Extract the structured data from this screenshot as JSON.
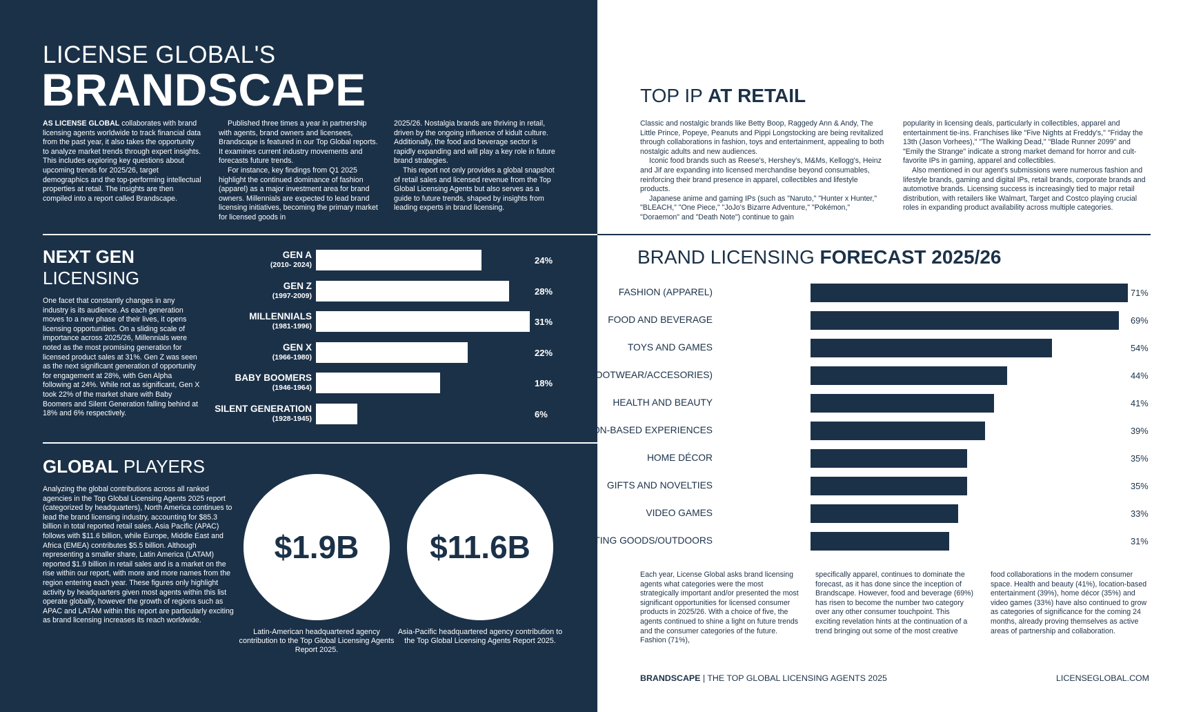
{
  "header": {
    "kicker": "LICENSE GLOBAL'S",
    "title": "BRANDSCAPE"
  },
  "intro": {
    "lead_bold": "AS LICENSE GLOBAL",
    "col1_rest": " collaborates with brand licensing agents worldwide to track financial data from the past year, it also takes the opportunity to analyze market trends through expert insights. This includes exploring key questions about upcoming trends for 2025/26, target demographics and the top-performing intellectual properties at retail. The insights are then compiled into a report called Brandscape.",
    "col2_p1": "Published three times a year in partnership with agents, brand owners and licensees, Brandscape is featured in our Top Global reports. It examines current industry movements and forecasts future trends.",
    "col2_p2": "For instance, key findings from Q1 2025 highlight the continued dominance of fashion (apparel) as a major investment area for brand owners. Millennials are expected to lead brand licensing initiatives, becoming the primary market for licensed goods in",
    "col3_p1": "2025/26. Nostalgia brands are thriving in retail, driven by the ongoing influence of kidult culture. Additionally, the food and beverage sector is rapidly expanding and will play a key role in future brand strategies.",
    "col3_p2": "This report not only provides a global snapshot of retail sales and licensed revenue from the Top Global Licensing Agents but also serves as a guide to future trends, shaped by insights from leading experts in brand licensing."
  },
  "next_gen": {
    "title_bold": "NEXT GEN",
    "title_light": "LICENSING",
    "body": "One facet that constantly changes in any industry is its audience. As each generation moves to a new phase of their lives, it opens licensing opportunities. On a sliding scale of importance across 2025/26, Millennials were noted as the most promising generation for licensed product sales at 31%. Gen Z was seen as the next significant generation of opportunity for engagement at 28%, with Gen Alpha following at 24%. While not as significant, Gen X took 22% of the market share with Baby Boomers and Silent Generation falling behind at 18% and 6% respectively."
  },
  "chart_data": [
    {
      "type": "bar",
      "title": "NEXT GEN LICENSING",
      "orientation": "horizontal",
      "categories": [
        "GEN A",
        "GEN Z",
        "MILLENNIALS",
        "GEN X",
        "BABY BOOMERS",
        "SILENT GENERATION"
      ],
      "subcategories": [
        "(2010- 2024)",
        "(1997-2009)",
        "(1981-1996)",
        "(1966-1980)",
        "(1946-1964)",
        "(1928-1945)"
      ],
      "values": [
        24,
        28,
        31,
        22,
        18,
        6
      ],
      "value_labels": [
        "24%",
        "28%",
        "31%",
        "22%",
        "18%",
        "6%"
      ],
      "unit": "%",
      "xlim": [
        0,
        31
      ]
    },
    {
      "type": "bar",
      "title": "BRAND LICENSING FORECAST 2025/26",
      "orientation": "horizontal",
      "categories": [
        "FASHION (APPAREL)",
        "FOOD AND BEVERAGE",
        "TOYS AND GAMES",
        "FASHION (FOOTWEAR/ACCESORIES)",
        "HEALTH AND BEAUTY",
        "LOCATION-BASED EXPERIENCES",
        "HOME DÉCOR",
        "GIFTS AND NOVELTIES",
        "VIDEO GAMES",
        "SPORTING GOODS/OUTDOORS"
      ],
      "values": [
        71,
        69,
        54,
        44,
        41,
        39,
        35,
        35,
        33,
        31
      ],
      "value_labels": [
        "71%",
        "69%",
        "54%",
        "44%",
        "41%",
        "39%",
        "35%",
        "35%",
        "33%",
        "31%"
      ],
      "unit": "%",
      "xlim": [
        0,
        71
      ]
    }
  ],
  "global_players": {
    "title_bold": "GLOBAL",
    "title_light": " PLAYERS",
    "body": "Analyzing the global contributions across all ranked agencies in the Top Global Licensing Agents 2025 report (categorized by headquarters), North America continues to lead the brand licensing industry, accounting for $85.3 billion in total reported retail sales. Asia Pacific (APAC) follows with $11.6 billion, while Europe, Middle East and Africa (EMEA) contributes $5.5 billion. Although representing a smaller share, Latin America (LATAM) reported $1.9 billion in retail sales and is a market on the rise within our report, with more and more names from the region entering each year. These figures only highlight activity by headquarters given most agents within this list operate globally, however the growth of regions such as APAC and LATAM within this report are particularly exciting as brand licensing increases its reach worldwide.",
    "stat1_value": "$1.9B",
    "stat1_caption": "Latin-American headquartered agency contribution to the Top Global Licensing Agents Report 2025.",
    "stat2_value": "$11.6B",
    "stat2_caption": "Asia-Pacific headquartered agency contribution to the Top Global Licensing Agents Report 2025."
  },
  "top_ip": {
    "title_light": "TOP IP ",
    "title_bold": "AT RETAIL",
    "col1_p1": "Classic and nostalgic brands like Betty Boop, Raggedy Ann & Andy, The Little Prince, Popeye, Peanuts and Pippi Longstocking are being revitalized through collaborations in fashion, toys and entertainment, appealing to both nostalgic adults and new audiences.",
    "col1_p2": "Iconic food brands such as Reese's, Hershey's, M&Ms, Kellogg's, Heinz and Jif are expanding into licensed merchandise beyond consumables, reinforcing their brand presence in apparel, collectibles and lifestyle products.",
    "col1_p3": "Japanese anime and gaming IPs (such as \"Naruto,\" \"Hunter x Hunter,\" \"BLEACH,\" \"One Piece,\" \"JoJo's Bizarre Adventure,\" \"Pokémon,\" \"Doraemon\" and \"Death Note\") continue to gain",
    "col2_p1": "popularity in licensing deals, particularly in collectibles, apparel and entertainment tie-ins. Franchises like \"Five Nights at Freddy's,\" \"Friday the 13th (Jason Vorhees),\" \"The Walking Dead,\" \"Blade Runner 2099\" and \"Emily the Strange\" indicate a strong market demand for horror and cult-favorite IPs in gaming, apparel and collectibles.",
    "col2_p2": "Also mentioned in our agent's submissions were numerous fashion and lifestyle brands, gaming and digital IPs, retail brands, corporate brands and automotive brands. Licensing success is increasingly tied to major retail distribution, with retailers like Walmart, Target and Costco playing crucial roles in expanding product availability across multiple categories."
  },
  "forecast": {
    "title_light": "BRAND LICENSING ",
    "title_bold": "FORECAST 2025/26",
    "col1": "Each year, License Global asks brand licensing agents what categories were the most strategically important and/or presented the most significant opportunities for licensed consumer products in 2025/26. With a choice of five, the agents continued to shine a light on future trends and the consumer categories of the future. Fashion (71%),",
    "col2": "specifically apparel, continues to dominate the forecast, as it has done since the inception of Brandscape. However, food and beverage (69%) has risen to become the number two category over any other consumer touchpoint. This exciting revelation hints at the continuation of a trend bringing out some of the most creative",
    "col3": "food collaborations in the modern consumer space. Health and beauty (41%), location-based entertainment (39%), home décor (35%) and video games (33%) have also continued to grow as categories of significance for the coming 24 months, already proving themselves as active areas of partnership and collaboration."
  },
  "footer": {
    "brand": "BRANDSCAPE",
    "sep": " | ",
    "subtitle": "THE TOP GLOBAL LICENSING AGENTS 2025",
    "site": "LICENSEGLOBAL.COM"
  }
}
